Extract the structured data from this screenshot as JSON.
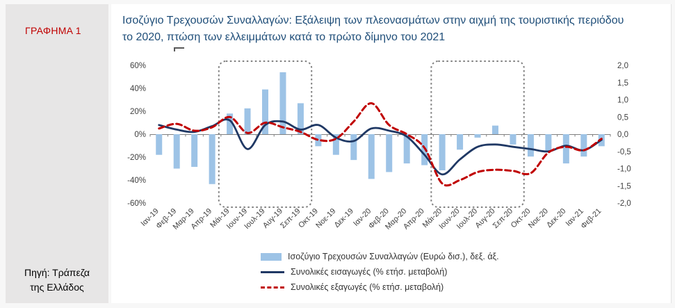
{
  "sidebar": {
    "chart_tag": "ΓΡΑΦΗΜΑ 1",
    "source_line1": "Πηγή: Τράπεζα",
    "source_line2": "της Ελλάδος"
  },
  "header": {
    "title_line1": "Ισοζύγιο Τρεχουσών Συναλλαγών: Εξάλειψη των πλεονασμάτων στην αιχμή της τουριστικής περιόδου",
    "title_line2": "το 2020, πτώση των ελλειμμάτων κατά το πρώτο δίμηνο του 2021"
  },
  "colors": {
    "title_blue": "#1f4e79",
    "tag_red": "#c00000",
    "bar_blue": "#9dc3e6",
    "imports_navy": "#1f3864",
    "exports_red": "#c00000",
    "highlight_gray": "#7f7f7f",
    "sidebar_gray": "#e7e6e6"
  },
  "chart_data": {
    "type": "bar",
    "subtype": "bars-plus-two-lines",
    "grid": false,
    "legend_position": "bottom",
    "categories": [
      "Ιαν-19",
      "Φεβ-19",
      "Μαρ-19",
      "Απρ-19",
      "Μάι-19",
      "Ιουν-19",
      "Ιουλ-19",
      "Αυγ-19",
      "Σεπ-19",
      "Οκτ-19",
      "Νοε-19",
      "Δεκ-19",
      "Ιαν-20",
      "Φεβ-20",
      "Μαρ-20",
      "Απρ-20",
      "Μάι-20",
      "Ιουν-20",
      "Ιουλ-20",
      "Αυγ-20",
      "Σεπ-20",
      "Οκτ-20",
      "Νοε-20",
      "Δεκ-20",
      "Ιαν-21",
      "Φεβ-21"
    ],
    "left_axis": {
      "min": -60,
      "max": 60,
      "ticks": [
        {
          "value": 60,
          "label": "60%"
        },
        {
          "value": 40,
          "label": "40%"
        },
        {
          "value": 20,
          "label": "20%"
        },
        {
          "value": 0,
          "label": "0%"
        },
        {
          "value": -20,
          "label": "-20%"
        },
        {
          "value": -40,
          "label": "-40%"
        },
        {
          "value": -60,
          "label": "-60%"
        }
      ]
    },
    "right_axis": {
      "min": -2,
      "max": 2,
      "ticks": [
        {
          "value": 2,
          "label": "2,0"
        },
        {
          "value": 1.5,
          "label": "1,5"
        },
        {
          "value": 1,
          "label": "1,0"
        },
        {
          "value": 0.5,
          "label": "0,5"
        },
        {
          "value": 0,
          "label": "0,0"
        },
        {
          "value": -0.5,
          "label": "-0,5"
        },
        {
          "value": -1,
          "label": "-1,0"
        },
        {
          "value": -1.5,
          "label": "-1,5"
        },
        {
          "value": -2,
          "label": "-2,0"
        }
      ]
    },
    "series_bars": {
      "label": "Ισοζύγιο Τρεχουσών Συναλλαγών (Ευρώ δισ.), δεξ. άξ.",
      "axis": "right",
      "color": "#9dc3e6",
      "values": [
        -0.6,
        -1.0,
        -0.95,
        -1.45,
        0.6,
        0.75,
        1.3,
        1.8,
        0.9,
        -0.35,
        -0.6,
        -0.75,
        -1.3,
        -1.1,
        -0.85,
        -0.9,
        -1.05,
        -0.45,
        -0.1,
        0.25,
        -0.3,
        -0.65,
        -0.5,
        -0.85,
        -0.65,
        -0.35
      ]
    },
    "series_imports": {
      "label": "Συνολικές εισαγωγές (% ετήσ. μεταβολή)",
      "axis": "left",
      "color": "#1f3864",
      "style": "solid",
      "values": [
        8,
        4,
        2,
        7,
        12,
        -13,
        8,
        11,
        4,
        8,
        -3,
        -6,
        5,
        3,
        -2,
        -18,
        -35,
        -22,
        -11,
        -9,
        -11,
        -13,
        -15,
        -10,
        -14,
        -5
      ]
    },
    "series_exports": {
      "label": "Συνολικές εξαγωγές (% ετήσ. μεταβολή)",
      "axis": "left",
      "color": "#c00000",
      "style": "dashed",
      "values": [
        5,
        9,
        3,
        6,
        15,
        1,
        10,
        6,
        2,
        -5,
        -4,
        11,
        27,
        8,
        0,
        -12,
        -43,
        -40,
        -33,
        -31,
        -32,
        -34,
        -16,
        -11,
        -14,
        -4
      ]
    },
    "highlight_boxes": [
      {
        "from_index": 4,
        "to_index": 8
      },
      {
        "from_index": 16,
        "to_index": 20
      }
    ]
  }
}
